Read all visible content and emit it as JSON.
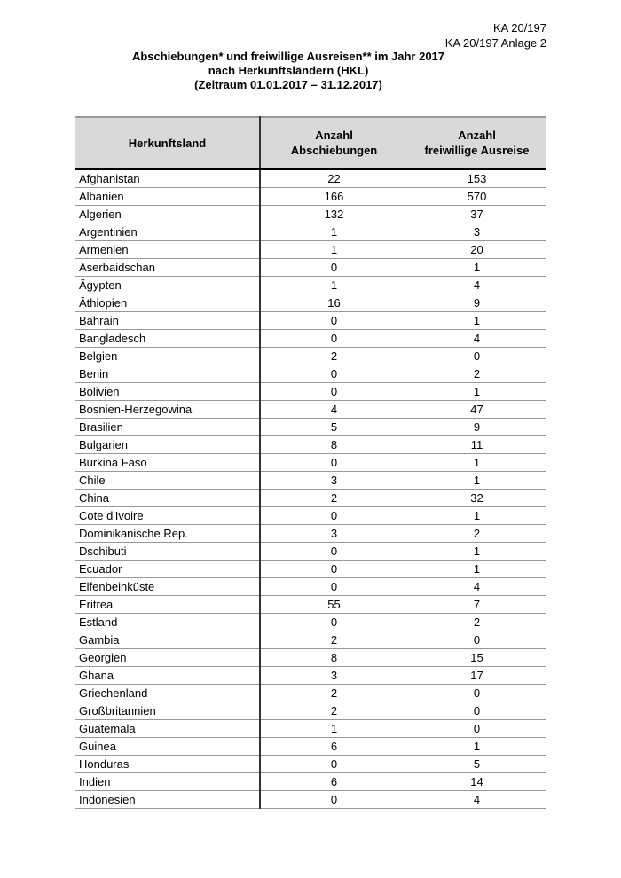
{
  "header": {
    "ref_line1": "KA 20/197",
    "ref_line2": "KA 20/197 Anlage 2",
    "title_line1": "Abschiebungen* und freiwillige Ausreisen** im Jahr 2017",
    "title_line2": "nach Herkunftsländern (HKL)",
    "title_line3": "(Zeitraum 01.01.2017 – 31.12.2017)"
  },
  "table": {
    "columns": {
      "country": "Herkunftsland",
      "deport_l1": "Anzahl",
      "deport_l2": "Abschiebungen",
      "vol_l1": "Anzahl",
      "vol_l2": "freiwillige Ausreise"
    },
    "rows": [
      [
        "Afghanistan",
        "22",
        "153"
      ],
      [
        "Albanien",
        "166",
        "570"
      ],
      [
        "Algerien",
        "132",
        "37"
      ],
      [
        "Argentinien",
        "1",
        "3"
      ],
      [
        "Armenien",
        "1",
        "20"
      ],
      [
        "Aserbaidschan",
        "0",
        "1"
      ],
      [
        "Ägypten",
        "1",
        "4"
      ],
      [
        "Äthiopien",
        "16",
        "9"
      ],
      [
        "Bahrain",
        "0",
        "1"
      ],
      [
        "Bangladesch",
        "0",
        "4"
      ],
      [
        "Belgien",
        "2",
        "0"
      ],
      [
        "Benin",
        "0",
        "2"
      ],
      [
        "Bolivien",
        "0",
        "1"
      ],
      [
        "Bosnien-Herzegowina",
        "4",
        "47"
      ],
      [
        "Brasilien",
        "5",
        "9"
      ],
      [
        "Bulgarien",
        "8",
        "11"
      ],
      [
        "Burkina Faso",
        "0",
        "1"
      ],
      [
        "Chile",
        "3",
        "1"
      ],
      [
        "China",
        "2",
        "32"
      ],
      [
        "Cote d'Ivoire",
        "0",
        "1"
      ],
      [
        "Dominikanische Rep.",
        "3",
        "2"
      ],
      [
        "Dschibuti",
        "0",
        "1"
      ],
      [
        "Ecuador",
        "0",
        "1"
      ],
      [
        "Elfenbeinküste",
        "0",
        "4"
      ],
      [
        "Eritrea",
        "55",
        "7"
      ],
      [
        "Estland",
        "0",
        "2"
      ],
      [
        "Gambia",
        "2",
        "0"
      ],
      [
        "Georgien",
        "8",
        "15"
      ],
      [
        "Ghana",
        "3",
        "17"
      ],
      [
        "Griechenland",
        "2",
        "0"
      ],
      [
        "Großbritannien",
        "2",
        "0"
      ],
      [
        "Guatemala",
        "1",
        "0"
      ],
      [
        "Guinea",
        "6",
        "1"
      ],
      [
        "Honduras",
        "0",
        "5"
      ],
      [
        "Indien",
        "6",
        "14"
      ],
      [
        "Indonesien",
        "0",
        "4"
      ]
    ]
  }
}
